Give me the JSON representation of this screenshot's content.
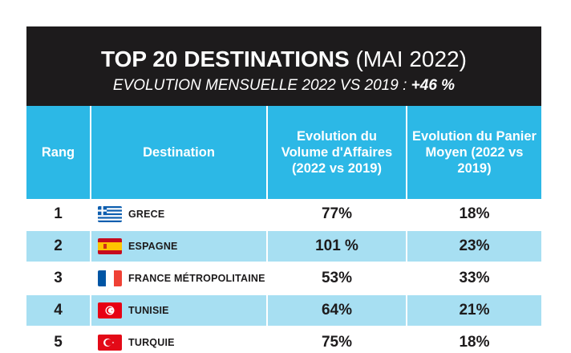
{
  "banner": {
    "title_bold": "TOP 20 DESTINATIONS",
    "title_light": " (MAI 2022)",
    "subtitle_text": "EVOLUTION MENSUELLE 2022 VS 2019 :",
    "subtitle_value": "+46 %"
  },
  "columns": {
    "rank": "Rang",
    "destination": "Destination",
    "volume": "Evolution du Volume d'Affaires (2022 vs 2019)",
    "basket": "Evolution du Panier Moyen (2022 vs 2019)"
  },
  "rows": [
    {
      "rank": "1",
      "flag": "greece-flag-icon",
      "destination": "GRECE",
      "volume": "77%",
      "basket": "18%"
    },
    {
      "rank": "2",
      "flag": "spain-flag-icon",
      "destination": "ESPAGNE",
      "volume": "101 %",
      "basket": "23%"
    },
    {
      "rank": "3",
      "flag": "france-flag-icon",
      "destination": "FRANCE MÉTROPOLITAINE",
      "volume": "53%",
      "basket": "33%"
    },
    {
      "rank": "4",
      "flag": "tunisia-flag-icon",
      "destination": "TUNISIE",
      "volume": "64%",
      "basket": "21%"
    },
    {
      "rank": "5",
      "flag": "turkey-flag-icon",
      "destination": "TURQUIE",
      "volume": "75%",
      "basket": "18%"
    }
  ],
  "colors": {
    "banner_bg": "#1d1b1c",
    "header_bg": "#2cb8e6",
    "alt_row_bg": "#a7dff2"
  }
}
